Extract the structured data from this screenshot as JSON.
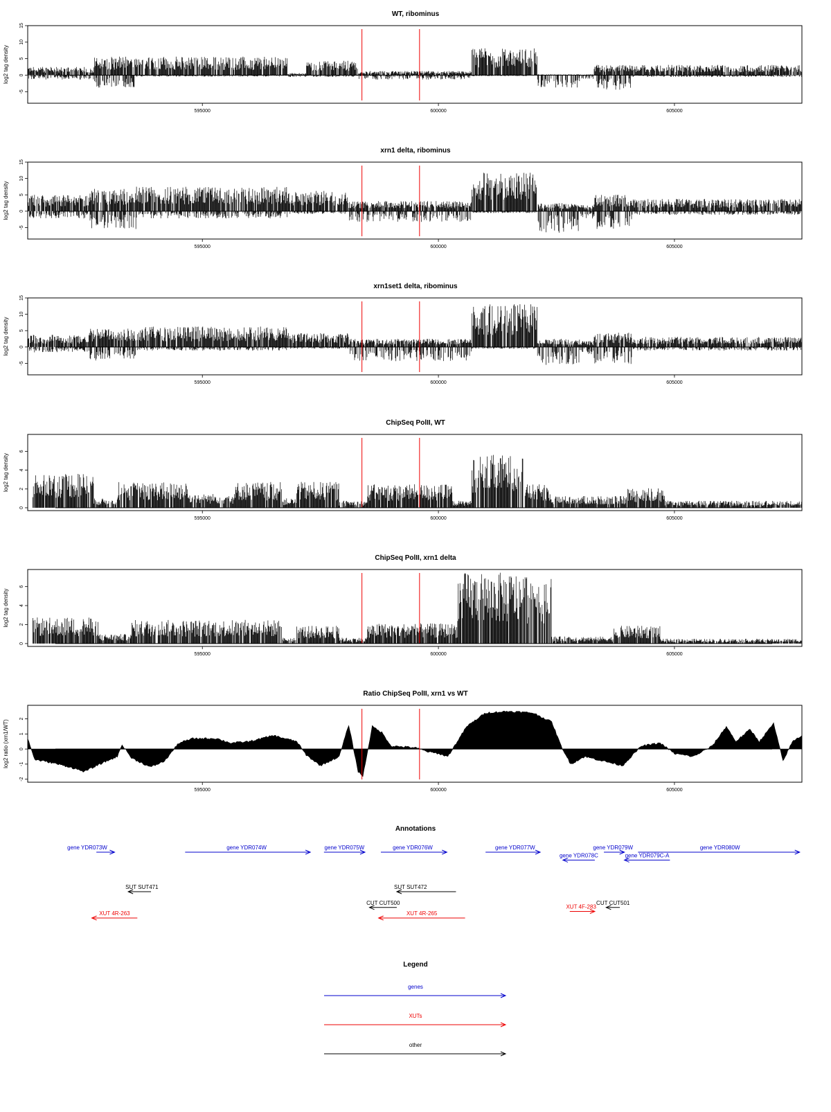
{
  "chart_data": [
    {
      "type": "area",
      "title": "WT, ribominus",
      "ylabel": "log2 tag density",
      "ylim": [
        -8.5,
        15
      ],
      "yticks": [
        "-5",
        "0",
        "5",
        "10",
        "15"
      ],
      "xlim": [
        591300,
        607700
      ],
      "xticks": [
        "595000",
        "600000",
        "605000"
      ],
      "markers": [
        598380,
        599600
      ],
      "segments": [
        {
          "from": 591300,
          "to": 592700,
          "pos": 2,
          "neg": 1.2
        },
        {
          "from": 592700,
          "to": 593600,
          "pos": 4.5,
          "neg": 3.5
        },
        {
          "from": 593600,
          "to": 596800,
          "pos": 4.5,
          "neg": 0.4
        },
        {
          "from": 596800,
          "to": 597200,
          "pos": 0.5,
          "neg": 0.5
        },
        {
          "from": 597200,
          "to": 598300,
          "pos": 3.5,
          "neg": 0.5
        },
        {
          "from": 598300,
          "to": 600700,
          "pos": 1,
          "neg": 1.2
        },
        {
          "from": 600700,
          "to": 602100,
          "pos": 6.5,
          "neg": 0.3
        },
        {
          "from": 602100,
          "to": 603000,
          "pos": 0.2,
          "neg": 3.5
        },
        {
          "from": 603000,
          "to": 603300,
          "pos": 0.2,
          "neg": 1
        },
        {
          "from": 603300,
          "to": 604100,
          "pos": 2.5,
          "neg": 4
        },
        {
          "from": 604100,
          "to": 607700,
          "pos": 2.5,
          "neg": 0.5
        }
      ]
    },
    {
      "type": "area",
      "title": "xrn1 delta, ribominus",
      "ylabel": "log2 tag density",
      "ylim": [
        -8.5,
        15
      ],
      "yticks": [
        "-5",
        "0",
        "5",
        "10",
        "15"
      ],
      "xlim": [
        591300,
        607700
      ],
      "xticks": [
        "595000",
        "600000",
        "605000"
      ],
      "markers": [
        598380,
        599600
      ],
      "segments": [
        {
          "from": 591300,
          "to": 592600,
          "pos": 4,
          "neg": 2
        },
        {
          "from": 592600,
          "to": 593600,
          "pos": 5.5,
          "neg": 5
        },
        {
          "from": 593600,
          "to": 596800,
          "pos": 6,
          "neg": 2
        },
        {
          "from": 596800,
          "to": 598100,
          "pos": 5,
          "neg": 0.8
        },
        {
          "from": 598100,
          "to": 600700,
          "pos": 2.5,
          "neg": 3
        },
        {
          "from": 600700,
          "to": 602100,
          "pos": 9.5,
          "neg": 0.5
        },
        {
          "from": 602100,
          "to": 603000,
          "pos": 2,
          "neg": 6
        },
        {
          "from": 603000,
          "to": 603300,
          "pos": 1.5,
          "neg": 2
        },
        {
          "from": 603300,
          "to": 604100,
          "pos": 4,
          "neg": 5
        },
        {
          "from": 604100,
          "to": 607700,
          "pos": 3,
          "neg": 1
        }
      ]
    },
    {
      "type": "area",
      "title": "xrn1set1 delta, ribominus",
      "ylabel": "log2 tag density",
      "ylim": [
        -8.5,
        15
      ],
      "yticks": [
        "-5",
        "0",
        "5",
        "10",
        "15"
      ],
      "xlim": [
        591300,
        607700
      ],
      "xticks": [
        "595000",
        "600000",
        "605000"
      ],
      "markers": [
        598380,
        599600
      ],
      "segments": [
        {
          "from": 591300,
          "to": 592600,
          "pos": 3,
          "neg": 1.5
        },
        {
          "from": 592600,
          "to": 593600,
          "pos": 4.5,
          "neg": 4
        },
        {
          "from": 593600,
          "to": 596800,
          "pos": 5,
          "neg": 1
        },
        {
          "from": 596800,
          "to": 598100,
          "pos": 3.5,
          "neg": 0.5
        },
        {
          "from": 598100,
          "to": 600700,
          "pos": 2,
          "neg": 4
        },
        {
          "from": 600700,
          "to": 602100,
          "pos": 10.5,
          "neg": 0.5
        },
        {
          "from": 602100,
          "to": 603000,
          "pos": 2,
          "neg": 5
        },
        {
          "from": 603000,
          "to": 603300,
          "pos": 1.5,
          "neg": 2
        },
        {
          "from": 603300,
          "to": 604100,
          "pos": 3.5,
          "neg": 5
        },
        {
          "from": 604100,
          "to": 607700,
          "pos": 2.5,
          "neg": 1
        }
      ]
    },
    {
      "type": "area",
      "title": "ChipSeq PolII, WT",
      "ylabel": "log2 tag density",
      "ylim": [
        -0.3,
        7.8
      ],
      "yticks": [
        "0",
        "2",
        "4",
        "6"
      ],
      "xlim": [
        591300,
        607700
      ],
      "xticks": [
        "595000",
        "600000",
        "605000"
      ],
      "markers": [
        598380,
        599600
      ],
      "segments": [
        {
          "from": 591400,
          "to": 592700,
          "pos": 3,
          "neg": 0
        },
        {
          "from": 592700,
          "to": 593200,
          "pos": 0.8,
          "neg": 0
        },
        {
          "from": 593200,
          "to": 594700,
          "pos": 2.2,
          "neg": 0
        },
        {
          "from": 594700,
          "to": 595700,
          "pos": 1.2,
          "neg": 0
        },
        {
          "from": 595700,
          "to": 596700,
          "pos": 2.2,
          "neg": 0
        },
        {
          "from": 596700,
          "to": 597000,
          "pos": 0.8,
          "neg": 0
        },
        {
          "from": 597000,
          "to": 597900,
          "pos": 2.2,
          "neg": 0
        },
        {
          "from": 597900,
          "to": 598500,
          "pos": 0.6,
          "neg": 0
        },
        {
          "from": 598500,
          "to": 600300,
          "pos": 2,
          "neg": 0
        },
        {
          "from": 600300,
          "to": 600700,
          "pos": 0.6,
          "neg": 0
        },
        {
          "from": 600700,
          "to": 601800,
          "pos": 4.5,
          "neg": 0
        },
        {
          "from": 601800,
          "to": 602400,
          "pos": 2,
          "neg": 0
        },
        {
          "from": 602400,
          "to": 604000,
          "pos": 1,
          "neg": 0
        },
        {
          "from": 604000,
          "to": 604800,
          "pos": 1.7,
          "neg": 0
        },
        {
          "from": 604800,
          "to": 607700,
          "pos": 0.6,
          "neg": 0
        }
      ]
    },
    {
      "type": "area",
      "title": "ChipSeq PolII, xrn1 delta",
      "ylabel": "log2 tag density",
      "ylim": [
        -0.3,
        7.8
      ],
      "yticks": [
        "0",
        "2",
        "4",
        "6"
      ],
      "xlim": [
        591300,
        607700
      ],
      "xticks": [
        "595000",
        "600000",
        "605000"
      ],
      "markers": [
        598380,
        599600
      ],
      "segments": [
        {
          "from": 591400,
          "to": 592800,
          "pos": 2.2,
          "neg": 0
        },
        {
          "from": 592800,
          "to": 593500,
          "pos": 0.8,
          "neg": 0
        },
        {
          "from": 593500,
          "to": 596700,
          "pos": 2,
          "neg": 0
        },
        {
          "from": 596700,
          "to": 597000,
          "pos": 0.5,
          "neg": 0
        },
        {
          "from": 597000,
          "to": 597900,
          "pos": 1.5,
          "neg": 0
        },
        {
          "from": 597900,
          "to": 598500,
          "pos": 0.5,
          "neg": 0
        },
        {
          "from": 598500,
          "to": 600400,
          "pos": 1.7,
          "neg": 0
        },
        {
          "from": 600400,
          "to": 602400,
          "pos": 6,
          "neg": 0
        },
        {
          "from": 602400,
          "to": 603700,
          "pos": 0.6,
          "neg": 0
        },
        {
          "from": 603700,
          "to": 604700,
          "pos": 1.5,
          "neg": 0
        },
        {
          "from": 604700,
          "to": 607700,
          "pos": 0.4,
          "neg": 0
        }
      ]
    },
    {
      "type": "area",
      "title": "Ratio ChipSeq PolII, xrn1 vs WT",
      "ylabel": "log2 ratio (xrn1/WT)",
      "ylim": [
        -2.2,
        2.9
      ],
      "yticks": [
        "-2",
        "-1",
        "0",
        "1",
        "2"
      ],
      "xlim": [
        591300,
        607700
      ],
      "xticks": [
        "595000",
        "600000",
        "605000"
      ],
      "markers": [
        598380,
        599600
      ],
      "profile": [
        [
          591300,
          0.7
        ],
        [
          591450,
          -0.7
        ],
        [
          591800,
          -0.9
        ],
        [
          592200,
          -1.2
        ],
        [
          592500,
          -1.5
        ],
        [
          592900,
          -0.9
        ],
        [
          593200,
          -0.5
        ],
        [
          593300,
          0.3
        ],
        [
          593500,
          -0.6
        ],
        [
          593900,
          -1.2
        ],
        [
          594200,
          -0.8
        ],
        [
          594500,
          0.4
        ],
        [
          594800,
          0.7
        ],
        [
          595300,
          0.7
        ],
        [
          595600,
          0.4
        ],
        [
          596000,
          0.5
        ],
        [
          596500,
          0.9
        ],
        [
          597000,
          0.5
        ],
        [
          597200,
          -0.4
        ],
        [
          597500,
          -1.1
        ],
        [
          597900,
          -0.5
        ],
        [
          598100,
          1.6
        ],
        [
          598300,
          -1.5
        ],
        [
          598400,
          -1.8
        ],
        [
          598600,
          1.5
        ],
        [
          598800,
          1.1
        ],
        [
          599000,
          0.2
        ],
        [
          599500,
          0.1
        ],
        [
          599800,
          -0.2
        ],
        [
          600000,
          -0.3
        ],
        [
          600200,
          -0.5
        ],
        [
          600600,
          1.5
        ],
        [
          601000,
          2.4
        ],
        [
          601500,
          2.5
        ],
        [
          602000,
          2.4
        ],
        [
          602400,
          1.8
        ],
        [
          602600,
          0.2
        ],
        [
          602800,
          -1.0
        ],
        [
          603100,
          -0.5
        ],
        [
          603500,
          -0.8
        ],
        [
          603900,
          -1.1
        ],
        [
          604300,
          0.2
        ],
        [
          604700,
          0.4
        ],
        [
          605000,
          -0.3
        ],
        [
          605400,
          -0.5
        ],
        [
          605800,
          0.2
        ],
        [
          606100,
          1.5
        ],
        [
          606300,
          0.5
        ],
        [
          606600,
          1.3
        ],
        [
          606800,
          0.5
        ],
        [
          607100,
          1.7
        ],
        [
          607300,
          -0.8
        ],
        [
          607500,
          0.5
        ],
        [
          607700,
          0.9
        ]
      ]
    }
  ],
  "annotations": {
    "title": "Annotations",
    "xlim": [
      591300,
      607700
    ],
    "features": [
      {
        "label": "gene YDR073W",
        "kind": "gene",
        "from": 592200,
        "to": 592600,
        "dir": 1,
        "row": 0,
        "labelAt": 592000,
        "labelPos": "above"
      },
      {
        "label": "gene YDR074W",
        "kind": "gene",
        "from": 594150,
        "to": 596900,
        "dir": 1,
        "row": 0,
        "labelAt": 595500,
        "labelPos": "above"
      },
      {
        "label": "gene YDR075W",
        "kind": "gene",
        "from": 597200,
        "to": 598100,
        "dir": 1,
        "row": 0,
        "labelAt": 597650,
        "labelPos": "above"
      },
      {
        "label": "gene YDR076W",
        "kind": "gene",
        "from": 598450,
        "to": 599900,
        "dir": 1,
        "row": 0,
        "labelAt": 599150,
        "labelPos": "above"
      },
      {
        "label": "gene YDR077W",
        "kind": "gene",
        "from": 600750,
        "to": 601950,
        "dir": 1,
        "row": 0,
        "labelAt": 601400,
        "labelPos": "above"
      },
      {
        "label": "gene YDR078C",
        "kind": "gene",
        "from": 602450,
        "to": 603150,
        "dir": -1,
        "row": 0.6,
        "labelAt": 602800,
        "labelPos": "above"
      },
      {
        "label": "gene YDR079W",
        "kind": "gene",
        "from": 603350,
        "to": 603800,
        "dir": 1,
        "row": 0,
        "labelAt": 603550,
        "labelPos": "above"
      },
      {
        "label": "gene YDR079C-A",
        "kind": "gene",
        "from": 603800,
        "to": 604800,
        "dir": -1,
        "row": 0.6,
        "labelAt": 604300,
        "labelPos": "above"
      },
      {
        "label": "gene YDR080W",
        "kind": "gene",
        "from": 604100,
        "to": 607650,
        "dir": 1,
        "row": 0,
        "labelAt": 605900,
        "labelPos": "above"
      },
      {
        "label": "SUT SUT471",
        "kind": "other",
        "from": 592900,
        "to": 593400,
        "dir": -1,
        "row": 3,
        "labelAt": 593200,
        "labelPos": "above"
      },
      {
        "label": "SUT SUT472",
        "kind": "other",
        "from": 598800,
        "to": 600100,
        "dir": -1,
        "row": 3,
        "labelAt": 599100,
        "labelPos": "above"
      },
      {
        "label": "CUT CUT500",
        "kind": "other",
        "from": 598200,
        "to": 598800,
        "dir": -1,
        "row": 4.2,
        "labelAt": 598500,
        "labelPos": "above"
      },
      {
        "label": "CUT CUT501",
        "kind": "other",
        "from": 603400,
        "to": 603700,
        "dir": -1,
        "row": 4.2,
        "labelAt": 603550,
        "labelPos": "above"
      },
      {
        "label": "XUT 4R-263",
        "kind": "xut",
        "from": 592100,
        "to": 593100,
        "dir": -1,
        "row": 5,
        "labelAt": 592600,
        "labelPos": "above"
      },
      {
        "label": "XUT 4R-265",
        "kind": "xut",
        "from": 598400,
        "to": 600300,
        "dir": -1,
        "row": 5,
        "labelAt": 599350,
        "labelPos": "above"
      },
      {
        "label": "XUT 4F-283",
        "kind": "xut",
        "from": 602600,
        "to": 603150,
        "dir": 1,
        "row": 4.5,
        "labelAt": 602850,
        "labelPos": "above"
      }
    ]
  },
  "legend": {
    "title": "Legend",
    "items": [
      {
        "label": "genes",
        "kind": "gene"
      },
      {
        "label": "XUTs",
        "kind": "xut"
      },
      {
        "label": "other",
        "kind": "other"
      }
    ]
  },
  "colors": {
    "gene": "#0000cc",
    "xut": "#ee0000",
    "other": "#000000",
    "marker": "#ee0000",
    "signal": "#000000"
  }
}
